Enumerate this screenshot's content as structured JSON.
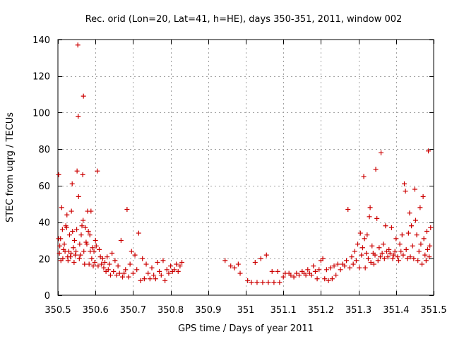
{
  "chart_data": {
    "type": "scatter",
    "title": "Rec. orid (Lon=20, Lat=41, h=HE), days 350-351, 2011, window 002",
    "xlabel": "GPS time / Days of year 2011",
    "ylabel": "STEC from uqrg / TECUs",
    "xlim": [
      350.5,
      351.5
    ],
    "ylim": [
      0,
      140
    ],
    "grid": true,
    "marker": "+",
    "color": "#cc0000",
    "x_ticks": [
      {
        "value": 350.5,
        "label": "350.5"
      },
      {
        "value": 350.6,
        "label": "350.6"
      },
      {
        "value": 350.7,
        "label": "350.7"
      },
      {
        "value": 350.8,
        "label": "350.8"
      },
      {
        "value": 350.9,
        "label": "350.9"
      },
      {
        "value": 351.0,
        "label": "351"
      },
      {
        "value": 351.1,
        "label": "351.1"
      },
      {
        "value": 351.2,
        "label": "351.2"
      },
      {
        "value": 351.3,
        "label": "351.3"
      },
      {
        "value": 351.4,
        "label": "351.4"
      },
      {
        "value": 351.5,
        "label": "351.5"
      }
    ],
    "y_ticks": [
      {
        "value": 0,
        "label": "0"
      },
      {
        "value": 20,
        "label": "20"
      },
      {
        "value": 40,
        "label": "40"
      },
      {
        "value": 60,
        "label": "60"
      },
      {
        "value": 80,
        "label": "80"
      },
      {
        "value": 100,
        "label": "100"
      },
      {
        "value": 120,
        "label": "120"
      },
      {
        "value": 140,
        "label": "140"
      }
    ],
    "points": [
      [
        350.502,
        66
      ],
      [
        350.502,
        31
      ],
      [
        350.504,
        23
      ],
      [
        350.505,
        27
      ],
      [
        350.507,
        31
      ],
      [
        350.508,
        19
      ],
      [
        350.51,
        48
      ],
      [
        350.512,
        36
      ],
      [
        350.513,
        20
      ],
      [
        350.515,
        25
      ],
      [
        350.517,
        28
      ],
      [
        350.519,
        24
      ],
      [
        350.521,
        38
      ],
      [
        350.523,
        37
      ],
      [
        350.524,
        44
      ],
      [
        350.526,
        21
      ],
      [
        350.527,
        19
      ],
      [
        350.529,
        24
      ],
      [
        350.531,
        33
      ],
      [
        350.533,
        21
      ],
      [
        350.535,
        23
      ],
      [
        350.536,
        46
      ],
      [
        350.538,
        61
      ],
      [
        350.539,
        35
      ],
      [
        350.541,
        26
      ],
      [
        350.543,
        18
      ],
      [
        350.544,
        30
      ],
      [
        350.546,
        22
      ],
      [
        350.548,
        24
      ],
      [
        350.55,
        36
      ],
      [
        350.551,
        68
      ],
      [
        350.553,
        137
      ],
      [
        350.554,
        98
      ],
      [
        350.555,
        54
      ],
      [
        350.557,
        20
      ],
      [
        350.558,
        28
      ],
      [
        350.56,
        22
      ],
      [
        350.562,
        33
      ],
      [
        350.564,
        38
      ],
      [
        350.566,
        66
      ],
      [
        350.567,
        41
      ],
      [
        350.568,
        109
      ],
      [
        350.569,
        24
      ],
      [
        350.571,
        17
      ],
      [
        350.573,
        37
      ],
      [
        350.575,
        29
      ],
      [
        350.577,
        28
      ],
      [
        350.579,
        46
      ],
      [
        350.581,
        35
      ],
      [
        350.583,
        17
      ],
      [
        350.585,
        33
      ],
      [
        350.586,
        24
      ],
      [
        350.588,
        46
      ],
      [
        350.59,
        20
      ],
      [
        350.592,
        26
      ],
      [
        350.594,
        16
      ],
      [
        350.596,
        24
      ],
      [
        350.598,
        18
      ],
      [
        350.6,
        30
      ],
      [
        350.602,
        27
      ],
      [
        350.605,
        68
      ],
      [
        350.607,
        16
      ],
      [
        350.61,
        25
      ],
      [
        350.613,
        21
      ],
      [
        350.616,
        17
      ],
      [
        350.619,
        20
      ],
      [
        350.622,
        15
      ],
      [
        350.625,
        18
      ],
      [
        350.628,
        13
      ],
      [
        350.631,
        21
      ],
      [
        350.634,
        14
      ],
      [
        350.637,
        17
      ],
      [
        350.64,
        11
      ],
      [
        350.644,
        23
      ],
      [
        350.648,
        13
      ],
      [
        350.652,
        19
      ],
      [
        350.656,
        11
      ],
      [
        350.66,
        16
      ],
      [
        350.664,
        12
      ],
      [
        350.668,
        30
      ],
      [
        350.672,
        10
      ],
      [
        350.676,
        12
      ],
      [
        350.68,
        14
      ],
      [
        350.684,
        47
      ],
      [
        350.688,
        10
      ],
      [
        350.692,
        17
      ],
      [
        350.696,
        24
      ],
      [
        350.7,
        12
      ],
      [
        350.705,
        22
      ],
      [
        350.71,
        14
      ],
      [
        350.715,
        34
      ],
      [
        350.72,
        8
      ],
      [
        350.725,
        20
      ],
      [
        350.73,
        9
      ],
      [
        350.735,
        17
      ],
      [
        350.74,
        12
      ],
      [
        350.745,
        9
      ],
      [
        350.75,
        15
      ],
      [
        350.755,
        11
      ],
      [
        350.76,
        9
      ],
      [
        350.765,
        18
      ],
      [
        350.77,
        13
      ],
      [
        350.775,
        11
      ],
      [
        350.78,
        19
      ],
      [
        350.785,
        8
      ],
      [
        350.79,
        14
      ],
      [
        350.795,
        12
      ],
      [
        350.8,
        16
      ],
      [
        350.805,
        13
      ],
      [
        350.81,
        14
      ],
      [
        350.815,
        17
      ],
      [
        350.82,
        13
      ],
      [
        350.825,
        16
      ],
      [
        350.83,
        18
      ],
      [
        350.945,
        19
      ],
      [
        350.96,
        16
      ],
      [
        350.97,
        15
      ],
      [
        350.98,
        17
      ],
      [
        350.985,
        12
      ],
      [
        351.005,
        8
      ],
      [
        351.015,
        7
      ],
      [
        351.025,
        18
      ],
      [
        351.03,
        7
      ],
      [
        351.04,
        20
      ],
      [
        351.045,
        7
      ],
      [
        351.055,
        22
      ],
      [
        351.06,
        7
      ],
      [
        351.07,
        13
      ],
      [
        351.075,
        7
      ],
      [
        351.085,
        13
      ],
      [
        351.09,
        7
      ],
      [
        351.1,
        10
      ],
      [
        351.105,
        12
      ],
      [
        351.115,
        12
      ],
      [
        351.12,
        11
      ],
      [
        351.128,
        10
      ],
      [
        351.135,
        12
      ],
      [
        351.142,
        11
      ],
      [
        351.15,
        13
      ],
      [
        351.155,
        12
      ],
      [
        351.16,
        11
      ],
      [
        351.165,
        14
      ],
      [
        351.17,
        12
      ],
      [
        351.175,
        11
      ],
      [
        351.18,
        16
      ],
      [
        351.185,
        13
      ],
      [
        351.19,
        9
      ],
      [
        351.195,
        14
      ],
      [
        351.2,
        19
      ],
      [
        351.205,
        20
      ],
      [
        351.21,
        9
      ],
      [
        351.215,
        14
      ],
      [
        351.22,
        8
      ],
      [
        351.225,
        15
      ],
      [
        351.23,
        9
      ],
      [
        351.235,
        16
      ],
      [
        351.24,
        11
      ],
      [
        351.245,
        17
      ],
      [
        351.252,
        14
      ],
      [
        351.258,
        17
      ],
      [
        351.263,
        16
      ],
      [
        351.268,
        19
      ],
      [
        351.272,
        47
      ],
      [
        351.277,
        15
      ],
      [
        351.282,
        21
      ],
      [
        351.286,
        17
      ],
      [
        351.29,
        24
      ],
      [
        351.294,
        19
      ],
      [
        351.298,
        28
      ],
      [
        351.302,
        15
      ],
      [
        351.305,
        34
      ],
      [
        351.308,
        22
      ],
      [
        351.311,
        26
      ],
      [
        351.314,
        65
      ],
      [
        351.316,
        31
      ],
      [
        351.318,
        15
      ],
      [
        351.321,
        23
      ],
      [
        351.323,
        33
      ],
      [
        351.326,
        20
      ],
      [
        351.329,
        43
      ],
      [
        351.331,
        48
      ],
      [
        351.333,
        18
      ],
      [
        351.336,
        27
      ],
      [
        351.339,
        23
      ],
      [
        351.341,
        17
      ],
      [
        351.344,
        22
      ],
      [
        351.346,
        69
      ],
      [
        351.349,
        42
      ],
      [
        351.352,
        19
      ],
      [
        351.355,
        26
      ],
      [
        351.358,
        21
      ],
      [
        351.36,
        78
      ],
      [
        351.363,
        23
      ],
      [
        351.366,
        28
      ],
      [
        351.369,
        20
      ],
      [
        351.372,
        38
      ],
      [
        351.375,
        24
      ],
      [
        351.378,
        21
      ],
      [
        351.381,
        25
      ],
      [
        351.384,
        23
      ],
      [
        351.388,
        37
      ],
      [
        351.391,
        20
      ],
      [
        351.394,
        22
      ],
      [
        351.397,
        24
      ],
      [
        351.4,
        31
      ],
      [
        351.404,
        21
      ],
      [
        351.407,
        19
      ],
      [
        351.41,
        28
      ],
      [
        351.413,
        24
      ],
      [
        351.416,
        33
      ],
      [
        351.419,
        22
      ],
      [
        351.422,
        61
      ],
      [
        351.425,
        57
      ],
      [
        351.427,
        25
      ],
      [
        351.43,
        20
      ],
      [
        351.433,
        34
      ],
      [
        351.436,
        45
      ],
      [
        351.438,
        21
      ],
      [
        351.441,
        38
      ],
      [
        351.444,
        27
      ],
      [
        351.447,
        20
      ],
      [
        351.45,
        58
      ],
      [
        351.452,
        41
      ],
      [
        351.455,
        33
      ],
      [
        351.458,
        19
      ],
      [
        351.461,
        24
      ],
      [
        351.464,
        48
      ],
      [
        351.466,
        28
      ],
      [
        351.469,
        17
      ],
      [
        351.472,
        54
      ],
      [
        351.474,
        31
      ],
      [
        351.477,
        22
      ],
      [
        351.48,
        19
      ],
      [
        351.482,
        35
      ],
      [
        351.484,
        25
      ],
      [
        351.486,
        79
      ],
      [
        351.488,
        21
      ],
      [
        351.49,
        27
      ],
      [
        351.492,
        37
      ]
    ]
  }
}
